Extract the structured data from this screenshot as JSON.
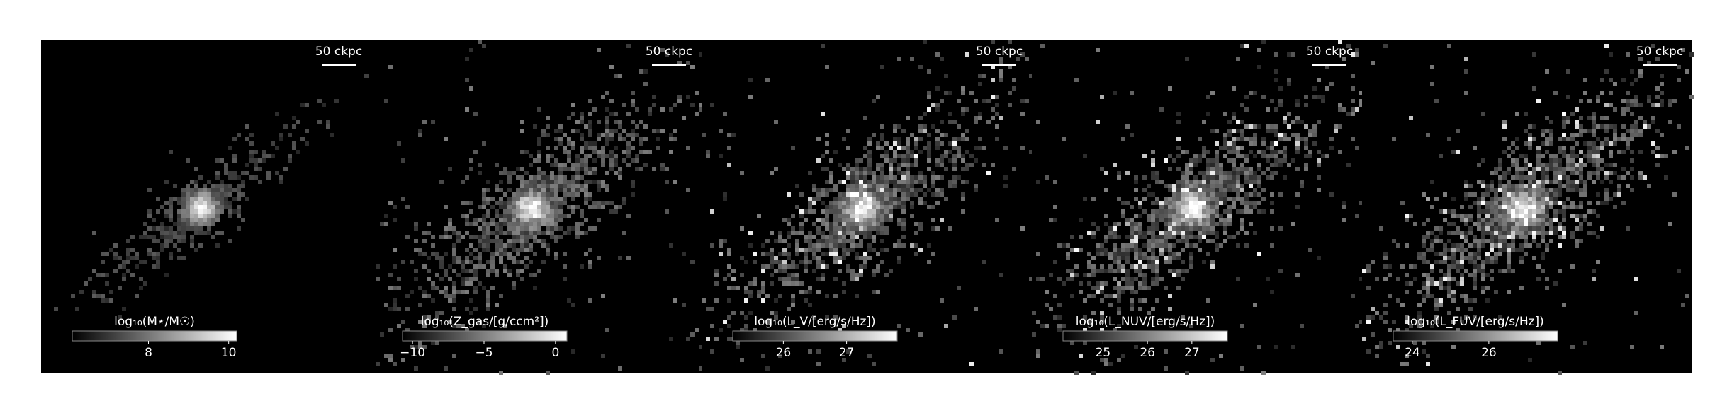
{
  "chart_data": [
    {
      "type": "image",
      "scale_label": "50 ckpc",
      "colorbar": {
        "label": "log₁₀(M⋆/M☉)",
        "lim": [
          6.1,
          10.2
        ],
        "ticks": [
          8,
          10
        ]
      }
    },
    {
      "type": "image",
      "scale_label": "50 ckpc",
      "colorbar": {
        "label": "log₁₀(Z_gas/[g/ccm²])",
        "lim": [
          -10.7,
          0.8
        ],
        "ticks": [
          {
            "value": -10,
            "label": "−10"
          },
          {
            "value": -5,
            "label": "−5"
          },
          0
        ]
      }
    },
    {
      "type": "image",
      "scale_label": "50 ckpc",
      "colorbar": {
        "label": "log₁₀(L_V/[erg/s/Hz])",
        "lim": [
          25.2,
          27.8
        ],
        "ticks": [
          26,
          27
        ]
      }
    },
    {
      "type": "image",
      "scale_label": "50 ckpc",
      "colorbar": {
        "label": "log₁₀(L_NUV/[erg/s/Hz])",
        "lim": [
          24.1,
          27.8
        ],
        "ticks": [
          25,
          26,
          27
        ]
      }
    },
    {
      "type": "image",
      "scale_label": "50 ckpc",
      "colorbar": {
        "label": "log₁₀(L_FUV/[erg/s/Hz])",
        "lim": [
          23.5,
          27.8
        ],
        "ticks": [
          24,
          26
        ]
      }
    }
  ]
}
